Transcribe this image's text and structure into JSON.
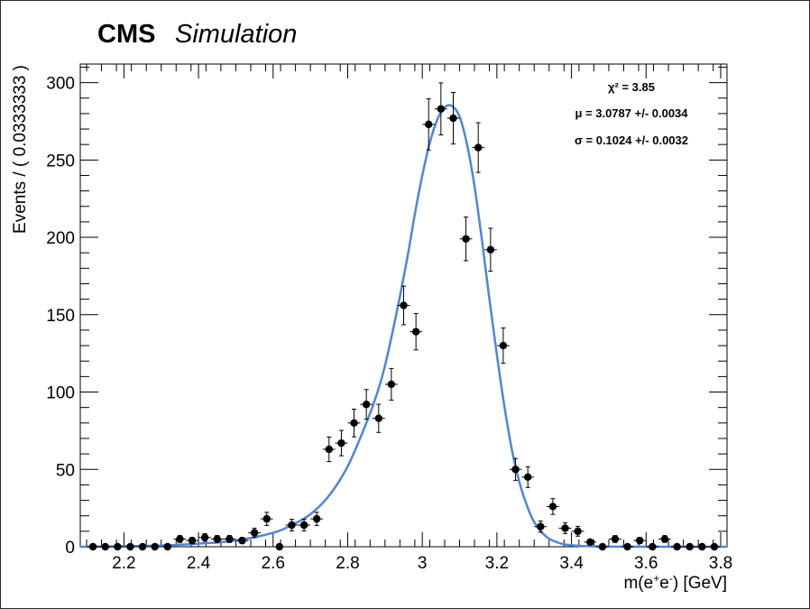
{
  "header": {
    "cms": "CMS",
    "simulation": "Simulation"
  },
  "stats": {
    "chi2": "χ² = 3.85",
    "mu": "μ = 3.0787 +/- 0.0034",
    "sigma": "σ = 0.1024 +/- 0.0032"
  },
  "colors": {
    "curve": "#4a86e0",
    "points": "#000000",
    "frame": "#000000"
  },
  "chart_data": {
    "type": "scatter",
    "xlabel": "m(e⁺e⁻) [GeV]",
    "ylabel": "Events / ( 0.0333333 )",
    "xlim": [
      2.083,
      3.817
    ],
    "ylim": [
      0,
      312
    ],
    "xticks": [
      "2.2",
      "2.4",
      "2.6",
      "2.8",
      "3",
      "3.2",
      "3.4",
      "3.6",
      "3.8"
    ],
    "yticks": [
      "0",
      "50",
      "100",
      "150",
      "200",
      "250",
      "300"
    ],
    "bin_width": 0.0333333,
    "series": [
      {
        "style": "points-with-errors",
        "points": [
          {
            "x": 2.117,
            "y": 0
          },
          {
            "x": 2.15,
            "y": 0
          },
          {
            "x": 2.183,
            "y": 0
          },
          {
            "x": 2.217,
            "y": 0
          },
          {
            "x": 2.25,
            "y": 0
          },
          {
            "x": 2.283,
            "y": 0
          },
          {
            "x": 2.317,
            "y": 0
          },
          {
            "x": 2.35,
            "y": 5
          },
          {
            "x": 2.383,
            "y": 4
          },
          {
            "x": 2.417,
            "y": 6
          },
          {
            "x": 2.45,
            "y": 5
          },
          {
            "x": 2.483,
            "y": 5
          },
          {
            "x": 2.517,
            "y": 4
          },
          {
            "x": 2.55,
            "y": 9
          },
          {
            "x": 2.583,
            "y": 18
          },
          {
            "x": 2.617,
            "y": 0
          },
          {
            "x": 2.65,
            "y": 14
          },
          {
            "x": 2.683,
            "y": 14
          },
          {
            "x": 2.717,
            "y": 18
          },
          {
            "x": 2.75,
            "y": 63
          },
          {
            "x": 2.783,
            "y": 67
          },
          {
            "x": 2.817,
            "y": 80
          },
          {
            "x": 2.85,
            "y": 92
          },
          {
            "x": 2.883,
            "y": 83
          },
          {
            "x": 2.917,
            "y": 105
          },
          {
            "x": 2.95,
            "y": 156
          },
          {
            "x": 2.983,
            "y": 139
          },
          {
            "x": 3.017,
            "y": 273
          },
          {
            "x": 3.05,
            "y": 283
          },
          {
            "x": 3.083,
            "y": 277
          },
          {
            "x": 3.117,
            "y": 199
          },
          {
            "x": 3.15,
            "y": 258
          },
          {
            "x": 3.183,
            "y": 192
          },
          {
            "x": 3.217,
            "y": 130
          },
          {
            "x": 3.25,
            "y": 50
          },
          {
            "x": 3.283,
            "y": 45
          },
          {
            "x": 3.317,
            "y": 13
          },
          {
            "x": 3.35,
            "y": 26
          },
          {
            "x": 3.383,
            "y": 12
          },
          {
            "x": 3.417,
            "y": 10
          },
          {
            "x": 3.45,
            "y": 3
          },
          {
            "x": 3.483,
            "y": 0
          },
          {
            "x": 3.517,
            "y": 5
          },
          {
            "x": 3.55,
            "y": 0
          },
          {
            "x": 3.583,
            "y": 4
          },
          {
            "x": 3.617,
            "y": 0
          },
          {
            "x": 3.65,
            "y": 5
          },
          {
            "x": 3.683,
            "y": 0
          },
          {
            "x": 3.717,
            "y": 0
          },
          {
            "x": 3.75,
            "y": 0
          },
          {
            "x": 3.783,
            "y": 0
          }
        ]
      },
      {
        "style": "fit-curve",
        "points": [
          {
            "x": 2.083,
            "y": 0
          },
          {
            "x": 2.2,
            "y": 0.3
          },
          {
            "x": 2.3,
            "y": 0.8
          },
          {
            "x": 2.4,
            "y": 2
          },
          {
            "x": 2.5,
            "y": 4
          },
          {
            "x": 2.6,
            "y": 9
          },
          {
            "x": 2.65,
            "y": 14
          },
          {
            "x": 2.7,
            "y": 21
          },
          {
            "x": 2.75,
            "y": 33
          },
          {
            "x": 2.8,
            "y": 52
          },
          {
            "x": 2.85,
            "y": 80
          },
          {
            "x": 2.88,
            "y": 100
          },
          {
            "x": 2.9,
            "y": 117
          },
          {
            "x": 2.93,
            "y": 150
          },
          {
            "x": 2.96,
            "y": 187
          },
          {
            "x": 2.98,
            "y": 215
          },
          {
            "x": 3.0,
            "y": 240
          },
          {
            "x": 3.02,
            "y": 261
          },
          {
            "x": 3.04,
            "y": 276
          },
          {
            "x": 3.06,
            "y": 284
          },
          {
            "x": 3.079,
            "y": 285
          },
          {
            "x": 3.1,
            "y": 278
          },
          {
            "x": 3.12,
            "y": 260
          },
          {
            "x": 3.14,
            "y": 233
          },
          {
            "x": 3.16,
            "y": 198
          },
          {
            "x": 3.18,
            "y": 160
          },
          {
            "x": 3.2,
            "y": 124
          },
          {
            "x": 3.22,
            "y": 91
          },
          {
            "x": 3.24,
            "y": 63
          },
          {
            "x": 3.26,
            "y": 42
          },
          {
            "x": 3.28,
            "y": 27
          },
          {
            "x": 3.3,
            "y": 16
          },
          {
            "x": 3.33,
            "y": 7
          },
          {
            "x": 3.36,
            "y": 3
          },
          {
            "x": 3.4,
            "y": 1
          },
          {
            "x": 3.5,
            "y": 0.1
          },
          {
            "x": 3.817,
            "y": 0
          }
        ]
      }
    ]
  }
}
